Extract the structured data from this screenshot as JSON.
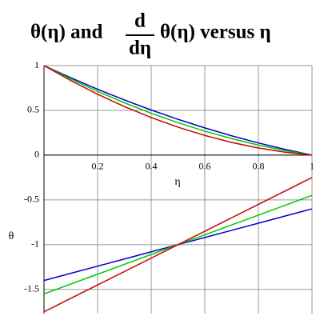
{
  "chart_data": {
    "type": "line",
    "title": {
      "left": "θ(η) and",
      "numerator": "d",
      "denominator": "dη",
      "right": "θ(η) versus η"
    },
    "x_label": "η",
    "y_label": "θ",
    "x": [
      0,
      0.1,
      0.2,
      0.3,
      0.4,
      0.5,
      0.6,
      0.7,
      0.8,
      0.9,
      1
    ],
    "series": [
      {
        "color": "#0000c8",
        "values": [
          1,
          0.864,
          0.736,
          0.616,
          0.504,
          0.4,
          0.304,
          0.216,
          0.136,
          0.064,
          0
        ]
      },
      {
        "color": "#00c800",
        "values": [
          1,
          0.8505,
          0.712,
          0.5845,
          0.468,
          0.3625,
          0.268,
          0.1845,
          0.112,
          0.0505,
          0
        ]
      },
      {
        "color": "#c80000",
        "values": [
          1,
          0.8325,
          0.68,
          0.5425,
          0.42,
          0.3125,
          0.22,
          0.1425,
          0.08,
          0.0325,
          0
        ]
      },
      {
        "color": "#0000c8",
        "values": [
          -1.4,
          -1.32,
          -1.24,
          -1.16,
          -1.08,
          -1,
          -0.92,
          -0.84,
          -0.76,
          -0.68,
          -0.6
        ]
      },
      {
        "color": "#00c800",
        "values": [
          -1.55,
          -1.44,
          -1.33,
          -1.22,
          -1.11,
          -1,
          -0.89,
          -0.78,
          -0.67,
          -0.56,
          -0.45
        ]
      },
      {
        "color": "#c80000",
        "values": [
          -1.75,
          -1.6,
          -1.45,
          -1.3,
          -1.15,
          -1,
          -0.85,
          -0.7,
          -0.55,
          -0.4,
          -0.25
        ]
      }
    ],
    "xlim": [
      0,
      1
    ],
    "ylim": [
      -1.77,
      1
    ],
    "xticks": [
      0.2,
      0.4,
      0.6,
      0.8,
      1
    ],
    "yticks": [
      -1.5,
      -1,
      -0.5,
      0,
      0.5,
      1
    ],
    "grid": true
  }
}
